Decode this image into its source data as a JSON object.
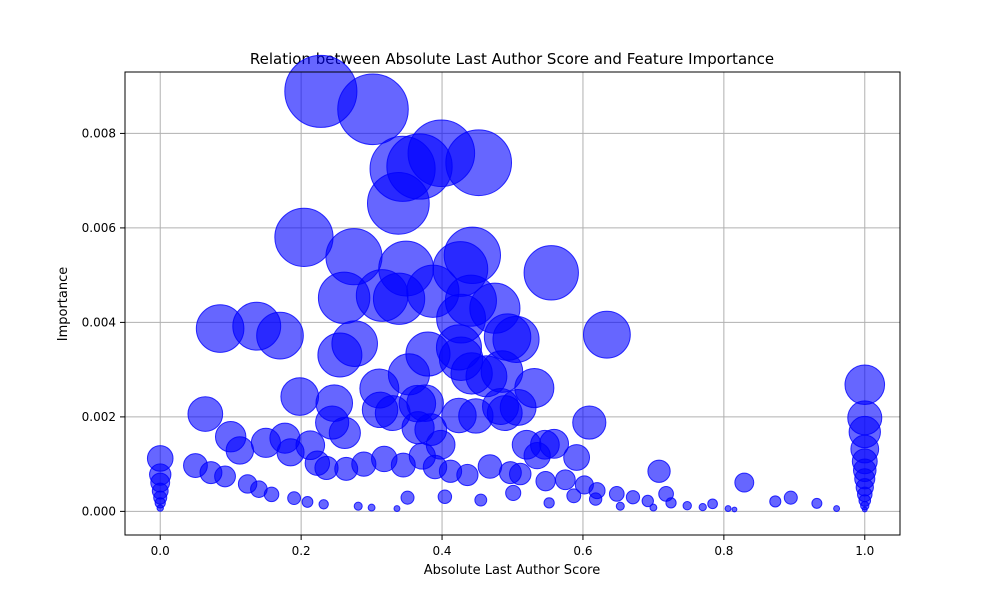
{
  "chart_data": {
    "type": "scatter",
    "title": "Relation between Absolute Last Author Score and Feature Importance",
    "xlabel": "Absolute Last Author Score",
    "ylabel": "Importance",
    "xlim": [
      -0.05,
      1.05
    ],
    "ylim": [
      -0.0005,
      0.0093
    ],
    "x_ticks": [
      0.0,
      0.2,
      0.4,
      0.6,
      0.8,
      1.0
    ],
    "y_ticks": [
      0.0,
      0.002,
      0.004,
      0.006,
      0.008
    ],
    "x_tick_labels": [
      "0.0",
      "0.2",
      "0.4",
      "0.6",
      "0.8",
      "1.0"
    ],
    "y_tick_labels": [
      "0.000",
      "0.002",
      "0.004",
      "0.006",
      "0.008"
    ],
    "grid": true,
    "marker_color": "#0000ff",
    "marker_opacity": 0.6,
    "marker_size_note": "marker area scales with importance",
    "points": [
      [
        0.228,
        0.00889
      ],
      [
        0.302,
        0.00851
      ],
      [
        0.452,
        0.00738
      ],
      [
        0.344,
        0.00725
      ],
      [
        0.399,
        0.00758
      ],
      [
        0.368,
        0.0073
      ],
      [
        0.338,
        0.00652
      ],
      [
        0.204,
        0.0058
      ],
      [
        0.443,
        0.00542
      ],
      [
        0.426,
        0.00513
      ],
      [
        0.275,
        0.00539
      ],
      [
        0.349,
        0.00514
      ],
      [
        0.555,
        0.00505
      ],
      [
        0.315,
        0.00457
      ],
      [
        0.339,
        0.0045
      ],
      [
        0.261,
        0.00452
      ],
      [
        0.387,
        0.00466
      ],
      [
        0.427,
        0.00408
      ],
      [
        0.441,
        0.00446
      ],
      [
        0.475,
        0.0043
      ],
      [
        0.085,
        0.00387
      ],
      [
        0.137,
        0.00392
      ],
      [
        0.17,
        0.00372
      ],
      [
        0.634,
        0.00374
      ],
      [
        0.276,
        0.00355
      ],
      [
        0.255,
        0.00331
      ],
      [
        0.424,
        0.00347
      ],
      [
        0.427,
        0.00323
      ],
      [
        0.493,
        0.00369
      ],
      [
        0.505,
        0.00364
      ],
      [
        0.38,
        0.00333
      ],
      [
        0.353,
        0.0029
      ],
      [
        0.463,
        0.00286
      ],
      [
        0.442,
        0.00292
      ],
      [
        0.485,
        0.00296
      ],
      [
        0.531,
        0.00261
      ],
      [
        0.311,
        0.0026
      ],
      [
        0.247,
        0.00229
      ],
      [
        0.198,
        0.00243
      ],
      [
        0.312,
        0.00215
      ],
      [
        0.365,
        0.00228
      ],
      [
        0.376,
        0.00229
      ],
      [
        0.424,
        0.00203
      ],
      [
        0.448,
        0.00202
      ],
      [
        0.483,
        0.00222
      ],
      [
        0.508,
        0.0022
      ],
      [
        0.489,
        0.00208
      ],
      [
        0.609,
        0.00188
      ],
      [
        0.384,
        0.00173
      ],
      [
        0.366,
        0.00177
      ],
      [
        0.33,
        0.00208
      ],
      [
        0.244,
        0.00188
      ],
      [
        0.262,
        0.00166
      ],
      [
        0.52,
        0.00141
      ],
      [
        0.559,
        0.00143
      ],
      [
        0.535,
        0.00118
      ],
      [
        0.398,
        0.00141
      ],
      [
        0.546,
        0.00141
      ],
      [
        0.591,
        0.00114
      ],
      [
        0.708,
        0.00085
      ],
      [
        0.064,
        0.00206
      ],
      [
        0.1,
        0.00158
      ],
      [
        0.113,
        0.00129
      ],
      [
        0.15,
        0.00145
      ],
      [
        0.177,
        0.00155
      ],
      [
        0.185,
        0.00125
      ],
      [
        0.213,
        0.0014
      ],
      [
        0.223,
        0.00102
      ],
      [
        0.236,
        0.00092
      ],
      [
        0.264,
        0.0009
      ],
      [
        0.289,
        0.001
      ],
      [
        0.318,
        0.00111
      ],
      [
        0.345,
        0.00098
      ],
      [
        0.372,
        0.00117
      ],
      [
        0.39,
        0.00094
      ],
      [
        0.412,
        0.00085
      ],
      [
        0.436,
        0.00077
      ],
      [
        0.468,
        0.00095
      ],
      [
        0.497,
        0.00082
      ],
      [
        0.511,
        0.00079
      ],
      [
        0.547,
        0.00064
      ],
      [
        0.575,
        0.00067
      ],
      [
        0.602,
        0.00056
      ],
      [
        0.62,
        0.00044
      ],
      [
        0.648,
        0.00037
      ],
      [
        0.671,
        0.0003
      ],
      [
        0.692,
        0.00022
      ],
      [
        0.725,
        0.00018
      ],
      [
        0.748,
        0.00012
      ],
      [
        0.77,
        9e-05
      ],
      [
        0.806,
        6e-05
      ],
      [
        0.829,
        0.00061
      ],
      [
        0.873,
        0.00021
      ],
      [
        0.895,
        0.00029
      ],
      [
        0.932,
        0.00017
      ],
      [
        0.96,
        6e-05
      ],
      [
        0.05,
        0.00097
      ],
      [
        0.072,
        0.00082
      ],
      [
        0.092,
        0.00074
      ],
      [
        0.124,
        0.00058
      ],
      [
        0.14,
        0.00047
      ],
      [
        0.158,
        0.00036
      ],
      [
        0.19,
        0.00028
      ],
      [
        0.209,
        0.0002
      ],
      [
        0.232,
        0.00015
      ],
      [
        0.281,
        0.00011
      ],
      [
        0.3,
        8e-05
      ],
      [
        0.336,
        6e-05
      ],
      [
        0.351,
        0.00029
      ],
      [
        0.404,
        0.00031
      ],
      [
        0.455,
        0.00024
      ],
      [
        0.501,
        0.00039
      ],
      [
        0.552,
        0.00018
      ],
      [
        0.587,
        0.00033
      ],
      [
        0.618,
        0.00026
      ],
      [
        0.653,
        0.00011
      ],
      [
        0.7,
        8e-05
      ],
      [
        0.718,
        0.00037
      ],
      [
        0.784,
        0.00016
      ],
      [
        0.815,
        4e-05
      ],
      [
        0.0,
        0.00112
      ],
      [
        0.0,
        0.00078
      ],
      [
        0.0,
        0.00061
      ],
      [
        0.0,
        0.00043
      ],
      [
        0.0,
        0.00029
      ],
      [
        0.0,
        0.00018
      ],
      [
        0.0,
        7e-05
      ],
      [
        1.0,
        0.00268
      ],
      [
        1.0,
        0.00198
      ],
      [
        1.0,
        0.00168
      ],
      [
        1.0,
        0.00132
      ],
      [
        1.0,
        0.00106
      ],
      [
        1.0,
        0.00087
      ],
      [
        1.0,
        0.00069
      ],
      [
        1.0,
        0.00051
      ],
      [
        1.0,
        0.00036
      ],
      [
        1.0,
        0.00023
      ],
      [
        1.0,
        0.00012
      ],
      [
        1.0,
        4e-05
      ]
    ]
  }
}
